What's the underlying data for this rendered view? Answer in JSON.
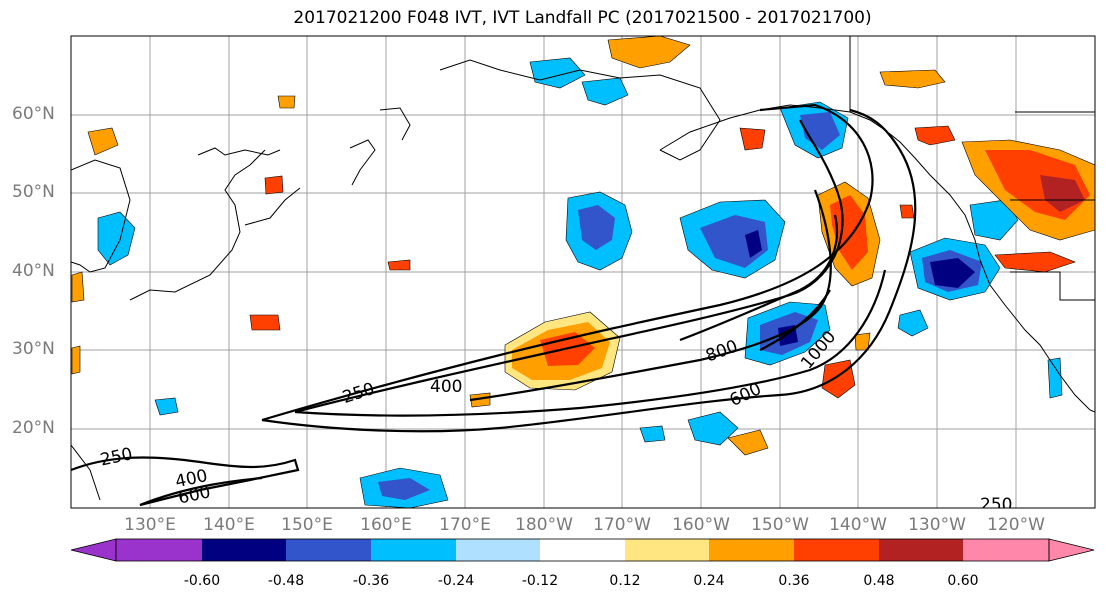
{
  "title": "2017021200 F048 IVT, IVT Landfall PC (2017021500 - 2017021700)",
  "lat_labels": [
    "60°N",
    "50°N",
    "40°N",
    "30°N",
    "20°N"
  ],
  "lon_labels": [
    "130°E",
    "140°E",
    "150°E",
    "160°E",
    "170°E",
    "180°W",
    "170°W",
    "160°W",
    "150°W",
    "140°W",
    "130°W",
    "120°W"
  ],
  "contour_labels": [
    "250",
    "400",
    "800",
    "1000",
    "600",
    "250",
    "400",
    "600",
    "250"
  ],
  "colorbar": {
    "colors": [
      "#9933cc",
      "#000080",
      "#3355cc",
      "#00bfff",
      "#b0e0ff",
      "#ffffff",
      "#ffe680",
      "#ffa000",
      "#ff4000",
      "#b22222",
      "#ff88aa"
    ],
    "tick_labels": [
      "-0.60",
      "-0.48",
      "-0.36",
      "-0.24",
      "-0.12",
      "0.12",
      "0.24",
      "0.36",
      "0.48",
      "0.60"
    ]
  }
}
